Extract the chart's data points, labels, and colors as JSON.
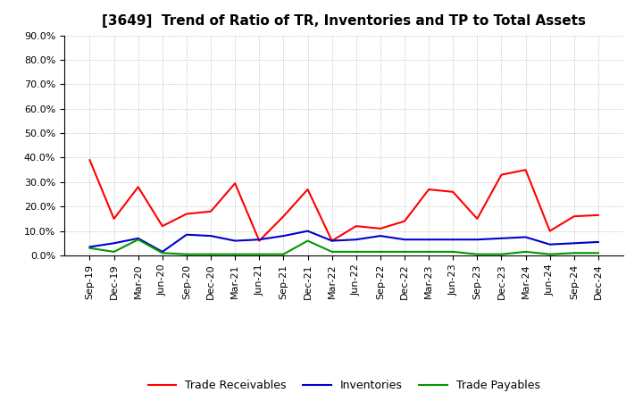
{
  "title": "[3649]  Trend of Ratio of TR, Inventories and TP to Total Assets",
  "labels": [
    "Sep-19",
    "Dec-19",
    "Mar-20",
    "Jun-20",
    "Sep-20",
    "Dec-20",
    "Mar-21",
    "Jun-21",
    "Sep-21",
    "Dec-21",
    "Mar-22",
    "Jun-22",
    "Sep-22",
    "Dec-22",
    "Mar-23",
    "Jun-23",
    "Sep-23",
    "Dec-23",
    "Mar-24",
    "Jun-24",
    "Sep-24",
    "Dec-24"
  ],
  "trade_receivables": [
    39.0,
    15.0,
    28.0,
    12.0,
    17.0,
    18.0,
    29.5,
    6.0,
    16.0,
    27.0,
    6.0,
    12.0,
    11.0,
    14.0,
    27.0,
    26.0,
    15.0,
    33.0,
    35.0,
    10.0,
    16.0,
    16.5
  ],
  "inventories": [
    3.5,
    5.0,
    7.0,
    1.5,
    8.5,
    8.0,
    6.0,
    6.5,
    8.0,
    10.0,
    6.0,
    6.5,
    8.0,
    6.5,
    6.5,
    6.5,
    6.5,
    7.0,
    7.5,
    4.5,
    5.0,
    5.5
  ],
  "trade_payables": [
    3.0,
    1.5,
    6.5,
    1.0,
    0.5,
    0.5,
    0.5,
    0.5,
    0.5,
    6.0,
    1.5,
    1.5,
    1.5,
    1.5,
    1.5,
    1.5,
    0.5,
    0.5,
    1.5,
    0.5,
    1.0,
    1.0
  ],
  "tr_color": "#ff0000",
  "inv_color": "#0000cc",
  "tp_color": "#009900",
  "ylim": [
    0.0,
    90.0
  ],
  "yticks": [
    0.0,
    10.0,
    20.0,
    30.0,
    40.0,
    50.0,
    60.0,
    70.0,
    80.0,
    90.0
  ],
  "bg_color": "#ffffff",
  "plot_bg_color": "#ffffff",
  "grid_color": "#bbbbbb",
  "legend_labels": [
    "Trade Receivables",
    "Inventories",
    "Trade Payables"
  ],
  "title_fontsize": 11,
  "tick_fontsize": 8,
  "legend_fontsize": 9
}
